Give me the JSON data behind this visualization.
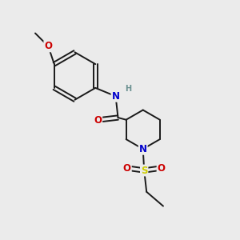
{
  "background_color": "#ebebeb",
  "bond_color": "#1a1a1a",
  "atom_colors": {
    "N": "#0000cc",
    "O": "#cc0000",
    "S": "#cccc00",
    "H": "#6b9090",
    "C": "#1a1a1a"
  },
  "bond_width": 1.4,
  "font_size": 8.5,
  "fig_width": 3.0,
  "fig_height": 3.0,
  "dpi": 100
}
